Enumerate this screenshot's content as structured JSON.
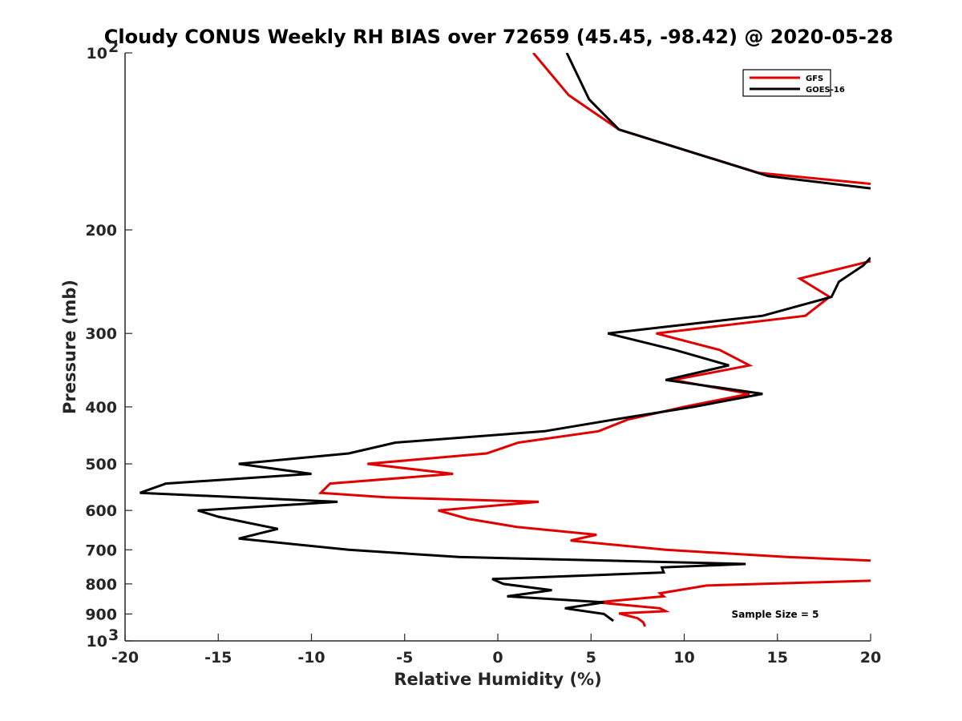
{
  "chart_data": {
    "type": "line",
    "title": "Cloudy CONUS Weekly RH BIAS over 72659 (45.45, -98.42) @ 2020-05-28",
    "xlabel": "Relative Humidity (%)",
    "ylabel": "Pressure (mb)",
    "xlim": [
      -20,
      20
    ],
    "ylim": [
      100,
      1000
    ],
    "y_scale": "log",
    "y_reversed": true,
    "grid": false,
    "legend_position": "top-right",
    "x_ticks": [
      "-20",
      "-15",
      "-10",
      "-5",
      "0",
      "5",
      "10",
      "15",
      "20"
    ],
    "y_ticks": [
      {
        "value": 100,
        "base": "10",
        "exp": "2"
      },
      {
        "value": 200,
        "label": "200"
      },
      {
        "value": 300,
        "label": "300"
      },
      {
        "value": 400,
        "label": "400"
      },
      {
        "value": 500,
        "label": "500"
      },
      {
        "value": 600,
        "label": "600"
      },
      {
        "value": 700,
        "label": "700"
      },
      {
        "value": 800,
        "label": "800"
      },
      {
        "value": 900,
        "label": "900"
      },
      {
        "value": 1000,
        "base": "10",
        "exp": "3"
      }
    ],
    "annotation": "Sample Size = 5",
    "series": [
      {
        "name": "GFS",
        "color": "#e00000",
        "segments": [
          [
            [
              1.9,
              100
            ],
            [
              3.8,
              118
            ],
            [
              6.5,
              135
            ],
            [
              14.0,
              160
            ],
            [
              20.0,
              167
            ]
          ],
          [
            [
              20.0,
              226
            ],
            [
              16.2,
              242
            ],
            [
              17.8,
              260
            ],
            [
              16.5,
              280
            ],
            [
              8.5,
              300
            ],
            [
              11.9,
              320
            ],
            [
              13.5,
              340
            ],
            [
              9.4,
              360
            ],
            [
              13.5,
              380
            ],
            [
              10.0,
              400
            ],
            [
              7.0,
              420
            ],
            [
              5.4,
              440
            ],
            [
              1.1,
              460
            ],
            [
              -0.6,
              480
            ],
            [
              -7.0,
              500
            ],
            [
              -2.4,
              520
            ],
            [
              -9.0,
              540
            ],
            [
              -9.5,
              560
            ],
            [
              -6.0,
              570
            ],
            [
              2.2,
              580
            ],
            [
              -3.2,
              600
            ],
            [
              -1.6,
              620
            ],
            [
              1.0,
              640
            ],
            [
              5.3,
              660
            ],
            [
              3.9,
              675
            ],
            [
              9.0,
              700
            ],
            [
              15.5,
              720
            ],
            [
              20.0,
              730
            ]
          ],
          [
            [
              20.0,
              790
            ],
            [
              11.2,
              805
            ],
            [
              8.7,
              830
            ],
            [
              8.9,
              840
            ],
            [
              5.3,
              860
            ],
            [
              8.7,
              880
            ],
            [
              9.0,
              890
            ],
            [
              6.5,
              898
            ],
            [
              7.5,
              915
            ],
            [
              7.8,
              930
            ],
            [
              7.9,
              945
            ]
          ]
        ]
      },
      {
        "name": "GOES-16",
        "color": "#000000",
        "segments": [
          [
            [
              3.7,
              100
            ],
            [
              4.9,
              120
            ],
            [
              6.5,
              135
            ],
            [
              14.5,
              162
            ],
            [
              20.0,
              170
            ]
          ],
          [
            [
              20.0,
              223
            ],
            [
              19.6,
              230
            ],
            [
              18.3,
              245
            ],
            [
              17.9,
              260
            ],
            [
              14.2,
              280
            ],
            [
              5.9,
              300
            ],
            [
              9.5,
              320
            ],
            [
              12.4,
              340
            ],
            [
              9.0,
              360
            ],
            [
              14.2,
              380
            ],
            [
              10.5,
              400
            ],
            [
              6.3,
              420
            ],
            [
              2.5,
              440
            ],
            [
              -5.5,
              460
            ],
            [
              -8.0,
              480
            ],
            [
              -13.9,
              500
            ],
            [
              -10.0,
              520
            ],
            [
              -17.8,
              540
            ],
            [
              -19.2,
              560
            ],
            [
              -8.6,
              580
            ],
            [
              -16.1,
              600
            ],
            [
              -15.0,
              615
            ],
            [
              -11.8,
              645
            ],
            [
              -13.9,
              670
            ],
            [
              -8.0,
              700
            ],
            [
              -2.1,
              720
            ],
            [
              13.3,
              740
            ],
            [
              8.8,
              750
            ],
            [
              8.9,
              765
            ],
            [
              -0.3,
              785
            ],
            [
              0.3,
              800
            ],
            [
              2.9,
              820
            ],
            [
              0.5,
              840
            ],
            [
              5.7,
              860
            ],
            [
              3.6,
              880
            ],
            [
              5.7,
              900
            ],
            [
              6.2,
              925
            ]
          ]
        ]
      }
    ]
  }
}
